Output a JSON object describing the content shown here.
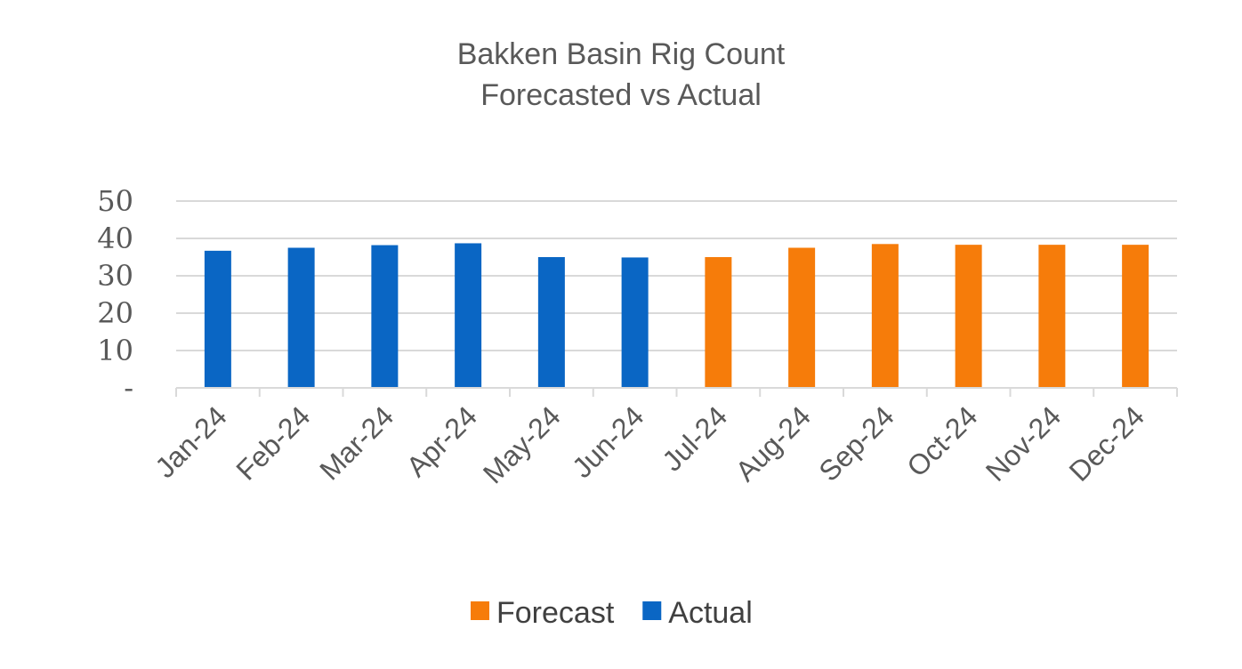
{
  "chart_data": {
    "type": "bar",
    "title": [
      "Bakken Basin Rig Count",
      "Forecasted vs Actual"
    ],
    "xlabel": "",
    "ylabel": "",
    "ylim": [
      0,
      50
    ],
    "yticks": [
      {
        "value": 0,
        "label": "-"
      },
      {
        "value": 10,
        "label": "10"
      },
      {
        "value": 20,
        "label": "20"
      },
      {
        "value": 30,
        "label": "30"
      },
      {
        "value": 40,
        "label": "40"
      },
      {
        "value": 50,
        "label": "50"
      }
    ],
    "grid": true,
    "legend_position": "bottom",
    "categories": [
      "Jan-24",
      "Feb-24",
      "Mar-24",
      "Apr-24",
      "May-24",
      "Jun-24",
      "Jul-24",
      "Aug-24",
      "Sep-24",
      "Oct-24",
      "Nov-24",
      "Dec-24"
    ],
    "series": [
      {
        "name": "Forecast",
        "color": "#f67c0a",
        "values": [
          null,
          null,
          null,
          null,
          null,
          null,
          35,
          37.5,
          38.5,
          38.3,
          38.3,
          38.3
        ]
      },
      {
        "name": "Actual",
        "color": "#0a66c4",
        "values": [
          36.7,
          37.5,
          38.2,
          38.7,
          35,
          34.9,
          null,
          null,
          null,
          null,
          null,
          null
        ]
      }
    ]
  }
}
